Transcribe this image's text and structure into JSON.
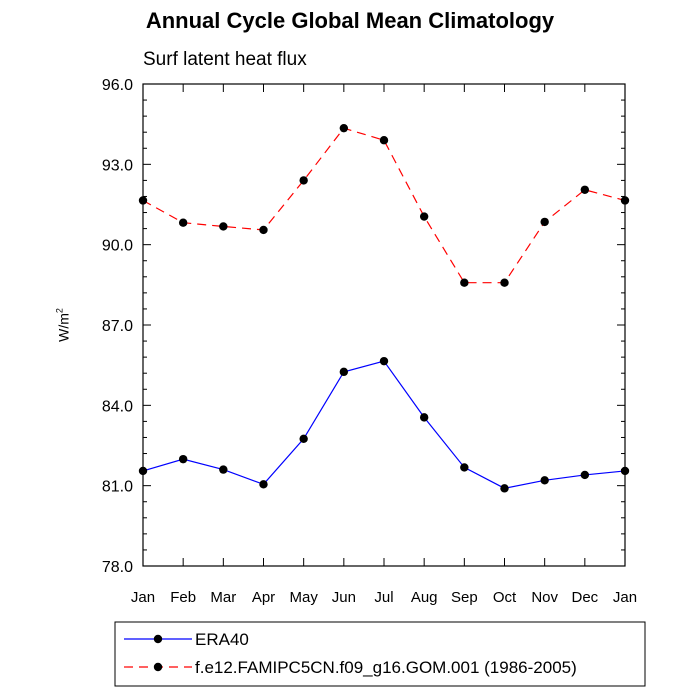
{
  "title": "Annual Cycle Global Mean Climatology",
  "subtitle": "Surf latent heat flux",
  "ylabel_base": "W/m",
  "ylabel_sup": "2",
  "chart_data": {
    "type": "line",
    "title": "Annual Cycle Global Mean Climatology",
    "subtitle": "Surf latent heat flux",
    "categories": [
      "Jan",
      "Feb",
      "Mar",
      "Apr",
      "May",
      "Jun",
      "Jul",
      "Aug",
      "Sep",
      "Oct",
      "Nov",
      "Dec",
      "Jan"
    ],
    "ylim": [
      78.0,
      96.0
    ],
    "yticks": [
      "78.0",
      "81.0",
      "84.0",
      "87.0",
      "90.0",
      "93.0",
      "96.0"
    ],
    "grid": false,
    "legend_position": "bottom",
    "series": [
      {
        "name": "ERA40",
        "color": "#0000ff",
        "dash": "solid",
        "values": [
          81.55,
          81.99,
          81.6,
          81.05,
          82.75,
          85.25,
          85.65,
          83.55,
          81.68,
          80.9,
          81.2,
          81.4,
          81.55
        ]
      },
      {
        "name": "f.e12.FAMIPC5CN.f09_g16.GOM.001 (1986-2005)",
        "color": "#ff0000",
        "dash": "dashed",
        "values": [
          91.65,
          90.82,
          90.68,
          90.55,
          92.4,
          94.35,
          93.9,
          91.05,
          88.58,
          88.58,
          90.85,
          92.05,
          91.65
        ]
      }
    ]
  }
}
